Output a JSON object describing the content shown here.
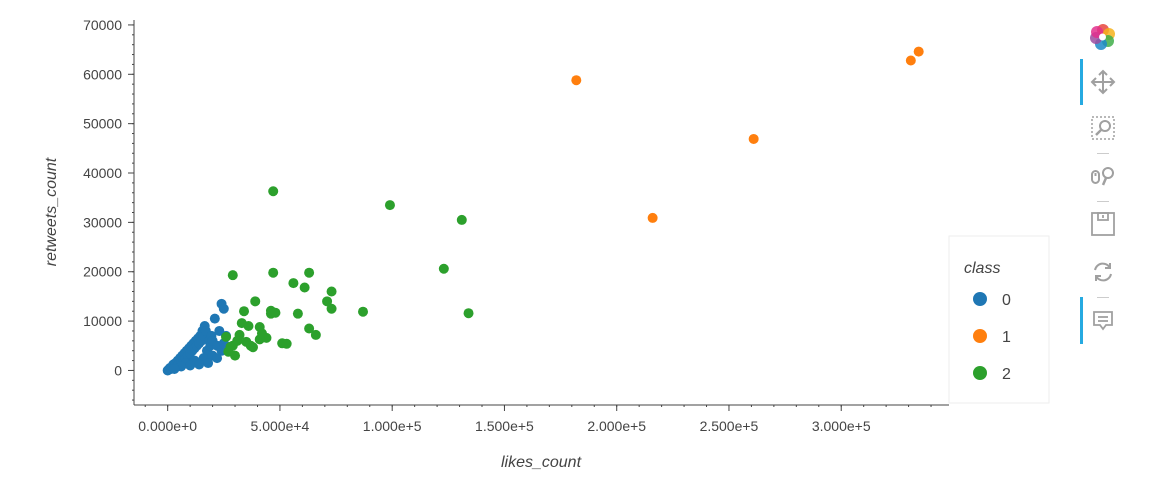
{
  "chart_data": {
    "type": "scatter",
    "xlabel": "likes_count",
    "ylabel": "retweets_count",
    "xlim": [
      -15000,
      348000
    ],
    "ylim": [
      -7000,
      71000
    ],
    "x_ticks": [
      0,
      50000,
      100000,
      150000,
      200000,
      250000,
      300000
    ],
    "x_tick_labels": [
      "0.000e+0",
      "5.000e+4",
      "1.000e+5",
      "1.500e+5",
      "2.000e+5",
      "2.500e+5",
      "3.000e+5"
    ],
    "y_ticks": [
      0,
      10000,
      20000,
      30000,
      40000,
      50000,
      60000,
      70000
    ],
    "y_tick_labels": [
      "0",
      "10000",
      "20000",
      "30000",
      "40000",
      "50000",
      "60000",
      "70000"
    ],
    "legend_title": "class",
    "legend_position": "right",
    "grid": false,
    "series": [
      {
        "name": "0",
        "color": "#1f77b4",
        "points": [
          [
            0,
            0
          ],
          [
            500,
            200
          ],
          [
            1000,
            500
          ],
          [
            1500,
            300
          ],
          [
            2000,
            800
          ],
          [
            2500,
            1200
          ],
          [
            3000,
            600
          ],
          [
            3500,
            1500
          ],
          [
            4000,
            1000
          ],
          [
            4500,
            2000
          ],
          [
            5000,
            1500
          ],
          [
            5500,
            2500
          ],
          [
            6000,
            1800
          ],
          [
            6500,
            3000
          ],
          [
            7000,
            2200
          ],
          [
            7500,
            3500
          ],
          [
            8000,
            2500
          ],
          [
            8500,
            4000
          ],
          [
            9000,
            3000
          ],
          [
            9500,
            4500
          ],
          [
            10000,
            3500
          ],
          [
            10500,
            5000
          ],
          [
            11000,
            4000
          ],
          [
            11500,
            5500
          ],
          [
            12000,
            4500
          ],
          [
            12500,
            6000
          ],
          [
            13000,
            5000
          ],
          [
            13500,
            6500
          ],
          [
            14000,
            5500
          ],
          [
            14500,
            7000
          ],
          [
            15000,
            6000
          ],
          [
            15500,
            8000
          ],
          [
            16000,
            7000
          ],
          [
            16500,
            9000
          ],
          [
            17000,
            8000
          ],
          [
            17500,
            4000
          ],
          [
            18000,
            3000
          ],
          [
            18500,
            6000
          ],
          [
            19000,
            5000
          ],
          [
            19500,
            7000
          ],
          [
            20000,
            6000
          ],
          [
            21000,
            10500
          ],
          [
            22000,
            5000
          ],
          [
            23000,
            8000
          ],
          [
            24000,
            13500
          ],
          [
            25000,
            12500
          ],
          [
            26000,
            7000
          ],
          [
            27000,
            4000
          ],
          [
            8000,
            1500
          ],
          [
            12000,
            2000
          ],
          [
            16000,
            2500
          ],
          [
            20000,
            3000
          ],
          [
            24000,
            4000
          ],
          [
            10000,
            1000
          ],
          [
            14000,
            1200
          ],
          [
            6000,
            800
          ],
          [
            3000,
            300
          ],
          [
            18000,
            1500
          ],
          [
            22000,
            2500
          ],
          [
            25000,
            5500
          ]
        ]
      },
      {
        "name": "1",
        "color": "#ff7f0e",
        "points": [
          [
            182000,
            58800
          ],
          [
            216000,
            30900
          ],
          [
            261000,
            46900
          ],
          [
            331000,
            62800
          ],
          [
            334500,
            64600
          ]
        ]
      },
      {
        "name": "2",
        "color": "#2ca02c",
        "points": [
          [
            29000,
            19300
          ],
          [
            47000,
            36300
          ],
          [
            47000,
            19800
          ],
          [
            99000,
            33500
          ],
          [
            123000,
            20600
          ],
          [
            131000,
            30500
          ],
          [
            134000,
            11600
          ],
          [
            87000,
            11900
          ],
          [
            73000,
            12500
          ],
          [
            73000,
            16000
          ],
          [
            71000,
            14000
          ],
          [
            63000,
            19800
          ],
          [
            61000,
            16800
          ],
          [
            56000,
            17700
          ],
          [
            58000,
            11500
          ],
          [
            66000,
            7200
          ],
          [
            63000,
            8500
          ],
          [
            51000,
            5500
          ],
          [
            53000,
            5400
          ],
          [
            46000,
            11500
          ],
          [
            46000,
            12100
          ],
          [
            39000,
            14000
          ],
          [
            41000,
            8800
          ],
          [
            41000,
            6300
          ],
          [
            36000,
            9000
          ],
          [
            35000,
            5800
          ],
          [
            38000,
            4700
          ],
          [
            33000,
            9600
          ],
          [
            30000,
            3000
          ],
          [
            34000,
            12000
          ],
          [
            28000,
            4800
          ],
          [
            26000,
            6800
          ],
          [
            48000,
            11700
          ],
          [
            44000,
            6600
          ],
          [
            32000,
            7200
          ],
          [
            29000,
            5000
          ],
          [
            37000,
            5000
          ],
          [
            42000,
            7500
          ],
          [
            27000,
            3800
          ],
          [
            31000,
            6000
          ]
        ]
      }
    ]
  },
  "toolbar": {
    "items": [
      {
        "icon": "bokeh-logo-icon"
      },
      {
        "icon": "pan-icon",
        "active": true
      },
      {
        "icon": "box-zoom-icon"
      },
      {
        "icon": "wheel-zoom-icon"
      },
      {
        "icon": "save-icon"
      },
      {
        "icon": "reset-icon"
      },
      {
        "icon": "hover-icon",
        "active": true
      }
    ],
    "colors": {
      "active": "#26aae1",
      "icon": "#a0a0a0"
    }
  }
}
